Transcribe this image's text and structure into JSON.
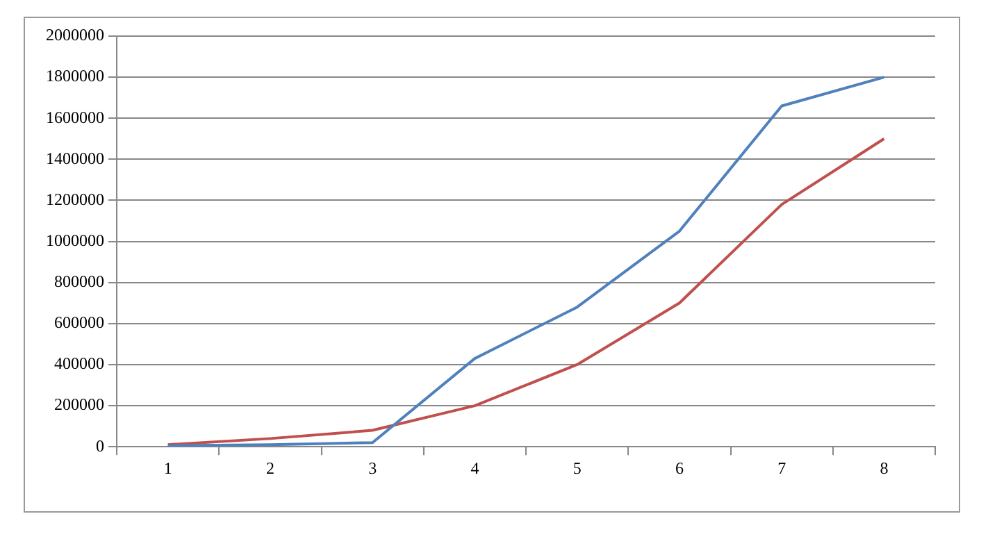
{
  "chart_data": {
    "type": "line",
    "categories": [
      "1",
      "2",
      "3",
      "4",
      "5",
      "6",
      "7",
      "8"
    ],
    "series": [
      {
        "color": "#4f81bd",
        "values": [
          5000,
          10000,
          20000,
          430000,
          680000,
          1050000,
          1660000,
          1800000
        ]
      },
      {
        "color": "#c0504d",
        "values": [
          10000,
          40000,
          80000,
          200000,
          400000,
          700000,
          1180000,
          1500000
        ]
      }
    ],
    "ylim": [
      0,
      2000000
    ],
    "yticks": [
      0,
      200000,
      400000,
      600000,
      800000,
      1000000,
      1200000,
      1400000,
      1600000,
      1800000,
      2000000
    ],
    "grid": "y",
    "legend": false,
    "marker": "none",
    "line_style": "solid"
  }
}
